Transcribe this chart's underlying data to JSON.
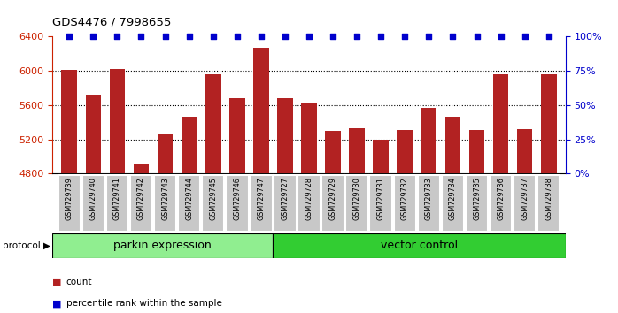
{
  "title": "GDS4476 / 7998655",
  "samples": [
    "GSM729739",
    "GSM729740",
    "GSM729741",
    "GSM729742",
    "GSM729743",
    "GSM729744",
    "GSM729745",
    "GSM729746",
    "GSM729747",
    "GSM729727",
    "GSM729728",
    "GSM729729",
    "GSM729730",
    "GSM729731",
    "GSM729732",
    "GSM729733",
    "GSM729734",
    "GSM729735",
    "GSM729736",
    "GSM729737",
    "GSM729738"
  ],
  "counts": [
    6010,
    5720,
    6015,
    4910,
    5270,
    5460,
    5960,
    5680,
    6260,
    5680,
    5620,
    5300,
    5330,
    5200,
    5310,
    5560,
    5460,
    5305,
    5960,
    5320,
    5960
  ],
  "parkin_count": 9,
  "vector_count": 12,
  "bar_color": "#B22222",
  "dot_color": "#0000CC",
  "ylim_left": [
    4800,
    6400
  ],
  "yticks_left": [
    4800,
    5200,
    5600,
    6000,
    6400
  ],
  "ylim_right": [
    0,
    100
  ],
  "yticks_right": [
    0,
    25,
    50,
    75,
    100
  ],
  "ytick_right_labels": [
    "0%",
    "25%",
    "50%",
    "75%",
    "100%"
  ],
  "parkin_label": "parkin expression",
  "vector_label": "vector control",
  "protocol_label": "protocol",
  "legend_count_label": "count",
  "legend_pct_label": "percentile rank within the sample",
  "parkin_color": "#90EE90",
  "vector_color": "#32CD32",
  "background_color": "#FFFFFF",
  "plot_bg_color": "#FFFFFF",
  "tick_label_color_left": "#CC2200",
  "tick_label_color_right": "#0000CC",
  "bar_bottom": 4800,
  "cell_bg_color": "#C8C8C8",
  "cell_border_color": "#FFFFFF"
}
